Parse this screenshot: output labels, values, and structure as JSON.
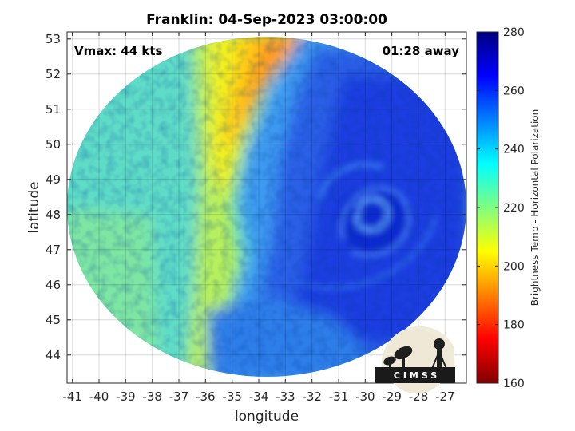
{
  "chart_data": {
    "type": "heatmap",
    "title": "Franklin: 04-Sep-2023 03:00:00",
    "xlabel": "longitude",
    "ylabel": "latitude",
    "xlim": [
      -41.2,
      -26.2
    ],
    "ylim": [
      43.2,
      53.2
    ],
    "x_ticks": [
      -41,
      -40,
      -39,
      -38,
      -37,
      -36,
      -35,
      -34,
      -33,
      -32,
      -31,
      -30,
      -29,
      -28,
      -27
    ],
    "y_ticks": [
      44,
      45,
      46,
      47,
      48,
      49,
      50,
      51,
      52,
      53
    ],
    "grid": true,
    "annotations": {
      "left": "Vmax: 44 kts",
      "right": "01:28 away"
    },
    "colorbar": {
      "label": "Brightness Temp - Horizontal Polarization",
      "range": [
        160,
        280
      ],
      "ticks": [
        160,
        180,
        200,
        220,
        240,
        260,
        280
      ],
      "colors": [
        "#800000",
        "#ff0000",
        "#ff8000",
        "#ffff00",
        "#80ff80",
        "#00ffff",
        "#0080ff",
        "#0000ff",
        "#000080"
      ]
    },
    "field_description_values": {
      "warm_band_min_K": 192,
      "western_background_K": 228,
      "cyclone_center_lon": -29.8,
      "cyclone_center_lat": 47.9,
      "cyclone_core_K": 258
    },
    "logo": "CIMSS"
  }
}
